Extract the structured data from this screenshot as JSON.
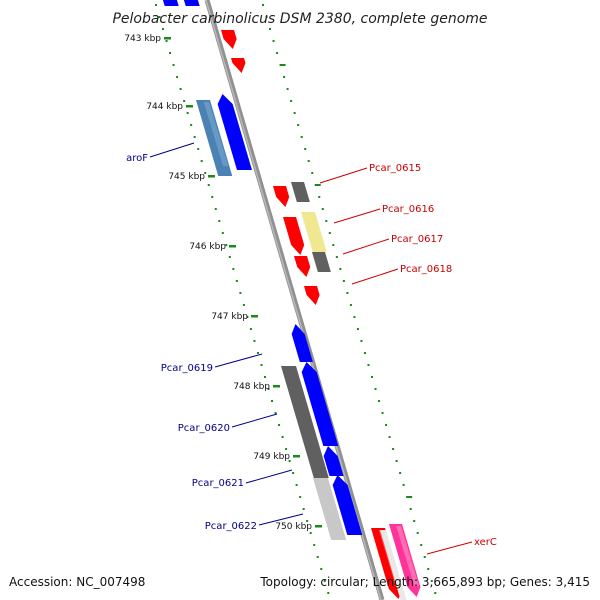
{
  "header": {
    "title": "Pelobacter carbinolicus DSM 2380, complete genome"
  },
  "footer": {
    "accession": "Accession: NC_007498",
    "summary": "Topology: circular; Length: 3,665,893 bp; Genes: 3,415"
  },
  "ticks": [
    "743 kbp",
    "744 kbp",
    "745 kbp",
    "746 kbp",
    "747 kbp",
    "748 kbp",
    "749 kbp",
    "750 kbp"
  ],
  "genes": [
    {
      "label": "aroF",
      "color": "#00008b"
    },
    {
      "label": "Pcar_0615",
      "color": "#cc0000"
    },
    {
      "label": "Pcar_0616",
      "color": "#cc0000"
    },
    {
      "label": "Pcar_0617",
      "color": "#cc0000"
    },
    {
      "label": "Pcar_0618",
      "color": "#cc0000"
    },
    {
      "label": "Pcar_0619",
      "color": "#00008b"
    },
    {
      "label": "Pcar_0620",
      "color": "#00008b"
    },
    {
      "label": "Pcar_0621",
      "color": "#00008b"
    },
    {
      "label": "Pcar_0622",
      "color": "#00008b"
    },
    {
      "label": "xerC",
      "color": "#cc0000"
    }
  ],
  "colors": {
    "forward_cds": "#0000ff",
    "reverse_cds": "#ff0000",
    "backbone": "#808080",
    "gc_dots": "#1a8a1a",
    "pseudo_grey": "#606060",
    "light_grey": "#c8c8c8",
    "steel_blue": "#4a82b4",
    "pale_yellow": "#f0e890",
    "magenta": "#ff3399"
  }
}
